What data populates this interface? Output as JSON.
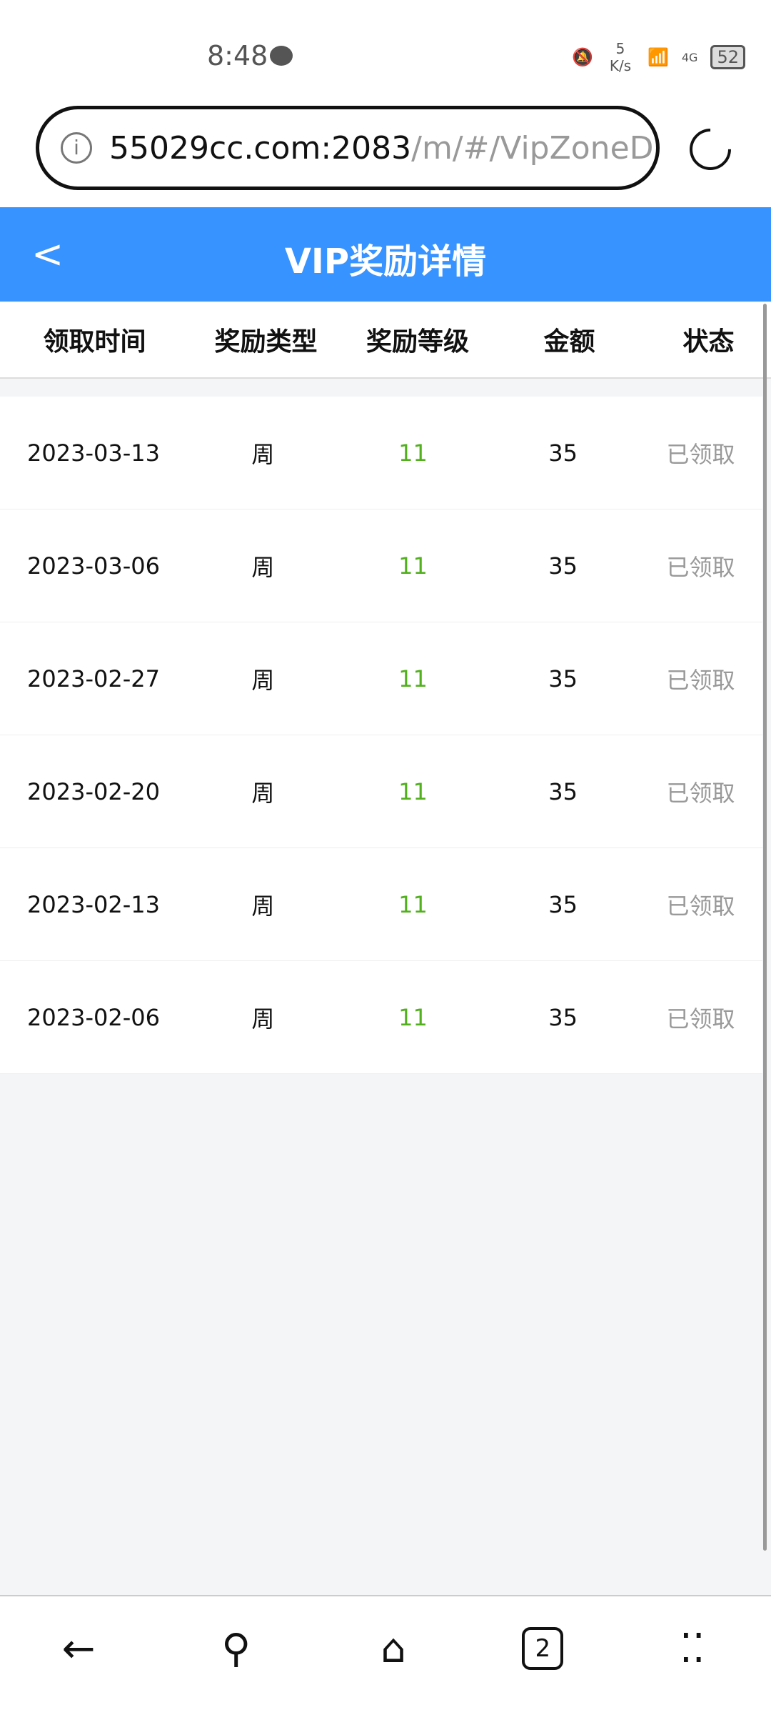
{
  "status_bar": {
    "time": "8:48",
    "net_speed": "5 K/s",
    "network": "4G",
    "battery": "52"
  },
  "browser": {
    "url_host": "55029cc.com:2083",
    "url_path": "/m/#/VipZoneD",
    "tab_count": "2"
  },
  "header": {
    "title": "VIP奖励详情",
    "back_icon": "chevron-left-icon"
  },
  "colors": {
    "header": "#3793ff",
    "level": "#52b01e",
    "status": "#999999"
  },
  "table": {
    "columns": [
      "领取时间",
      "奖励类型",
      "奖励等级",
      "金额",
      "状态"
    ],
    "rows": [
      {
        "date": "2023-03-13",
        "type": "周",
        "level": "11",
        "amount": "35",
        "status": "已领取"
      },
      {
        "date": "2023-03-06",
        "type": "周",
        "level": "11",
        "amount": "35",
        "status": "已领取"
      },
      {
        "date": "2023-02-27",
        "type": "周",
        "level": "11",
        "amount": "35",
        "status": "已领取"
      },
      {
        "date": "2023-02-20",
        "type": "周",
        "level": "11",
        "amount": "35",
        "status": "已领取"
      },
      {
        "date": "2023-02-13",
        "type": "周",
        "level": "11",
        "amount": "35",
        "status": "已领取"
      },
      {
        "date": "2023-02-06",
        "type": "周",
        "level": "11",
        "amount": "35",
        "status": "已领取"
      }
    ]
  }
}
